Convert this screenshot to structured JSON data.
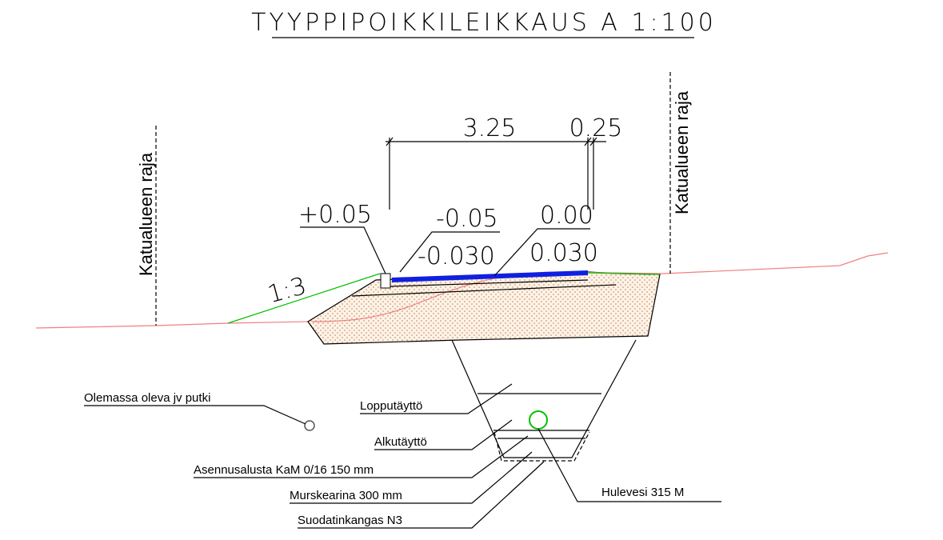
{
  "header": {
    "title": "TYYPPIPOIKKILEIKKAUS A 1:100"
  },
  "dimensions": {
    "width": "3.25",
    "edge": "0.25"
  },
  "levels": {
    "left": "+0.05",
    "middle": "-0.05",
    "right": "0.00"
  },
  "cross_slopes": {
    "left": "-0.030",
    "right": "0.030"
  },
  "side_slope": "1:3",
  "boundaries": [
    "Katualueen raja",
    "Katualueen raja"
  ],
  "labels": {
    "existing_pipe": "Olemassa oleva jv putki",
    "final_fill": "Lopputäyttö",
    "initial_fill": "Alkutäyttö",
    "bedding": "Asennusalusta KaM 0/16 150 mm",
    "crushed_base": "Murskearina 300 mm",
    "geotextile": "Suodatinkangas N3",
    "stormwater": "Hulevesi 315 M"
  }
}
